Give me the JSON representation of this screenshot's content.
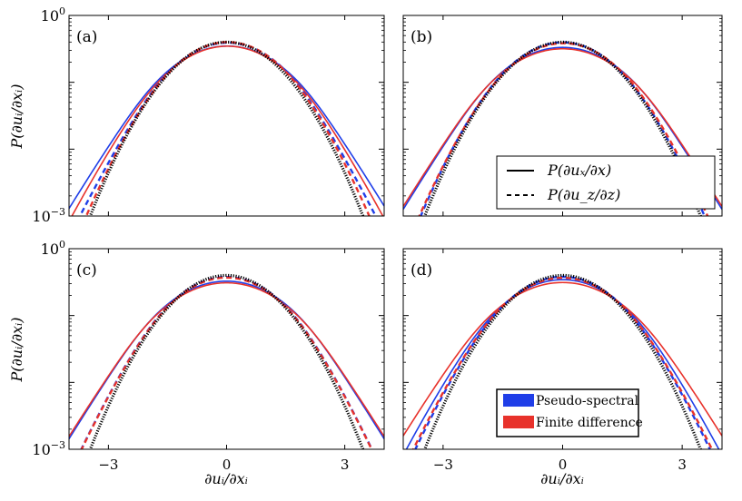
{
  "chart_data": {
    "type": "line",
    "title": "",
    "layout": "2x2 grid of semilog PDF panels",
    "xlabel": "∂uᵢ/∂xᵢ",
    "ylabel": "P(∂uᵢ/∂xᵢ)",
    "xlim": [
      -4,
      4
    ],
    "ylim": [
      0.001,
      1
    ],
    "yscale": "log",
    "xticks": [
      -3,
      0,
      3
    ],
    "xtick_labels": [
      "−3",
      "0",
      "3"
    ],
    "ytick_labels": [
      {
        "base": "10",
        "exp": "0",
        "value": 1
      },
      {
        "base": "10",
        "exp": "−3",
        "value": 0.001
      }
    ],
    "colors": {
      "pseudo_spectral": "#1f3ee8",
      "finite_difference": "#e8322b",
      "gaussian": "#000000"
    },
    "line_style_legend": {
      "placement": "panel (b), lower-right",
      "entries": [
        {
          "style": "solid",
          "label": "P(∂uₓ/∂x)"
        },
        {
          "style": "dashed",
          "label": "P(∂u_z/∂z)"
        }
      ]
    },
    "method_legend": {
      "placement": "panel (d), lower-right",
      "entries": [
        {
          "color_key": "pseudo_spectral",
          "label": "Pseudo-spectral"
        },
        {
          "color_key": "finite_difference",
          "label": "Finite difference"
        }
      ]
    },
    "reference": {
      "name": "Gaussian",
      "style": "dotted",
      "mean": 0,
      "std": 1
    },
    "panels": [
      {
        "label": "(a)",
        "series": [
          {
            "name": "Pseudo-spectral P(∂uₓ/∂x)",
            "method": "pseudo_spectral",
            "style": "solid",
            "std": 1.18,
            "skew": 0.02,
            "tail_alpha": 1.0,
            "tail_beta": 0.6,
            "tail_c": 1.9,
            "peak_factor": 1.03
          },
          {
            "name": "Finite difference P(∂uₓ/∂x)",
            "method": "finite_difference",
            "style": "solid",
            "std": 1.15,
            "skew": 0.02,
            "tail_alpha": 0.85,
            "tail_beta": 0.55,
            "tail_c": 2.0,
            "peak_factor": 1.0
          },
          {
            "name": "Pseudo-spectral P(∂u_z/∂z)",
            "method": "pseudo_spectral",
            "style": "dashed",
            "std": 1.08,
            "skew": 0.03,
            "tail_alpha": 0.9,
            "tail_beta": 0.55,
            "tail_c": 2.0,
            "peak_factor": 1.06
          },
          {
            "name": "Finite difference P(∂u_z/∂z)",
            "method": "finite_difference",
            "style": "dashed",
            "std": 1.05,
            "skew": 0.03,
            "tail_alpha": 0.55,
            "tail_beta": 0.5,
            "tail_c": 2.2,
            "peak_factor": 1.05
          }
        ]
      },
      {
        "label": "(b)",
        "series": [
          {
            "name": "Pseudo-spectral P(∂uₓ/∂x)",
            "method": "pseudo_spectral",
            "style": "solid",
            "std": 1.2,
            "skew": 0.0,
            "tail_alpha": 1.1,
            "tail_beta": 0.6,
            "tail_c": 2.0,
            "peak_factor": 1.0
          },
          {
            "name": "Finite difference P(∂uₓ/∂x)",
            "method": "finite_difference",
            "style": "solid",
            "std": 1.22,
            "skew": 0.0,
            "tail_alpha": 1.1,
            "tail_beta": 0.6,
            "tail_c": 2.0,
            "peak_factor": 0.97
          },
          {
            "name": "Pseudo-spectral P(∂u_z/∂z)",
            "method": "pseudo_spectral",
            "style": "dashed",
            "std": 1.04,
            "skew": 0.0,
            "tail_alpha": 0.35,
            "tail_beta": 0.5,
            "tail_c": 2.3,
            "peak_factor": 1.03
          },
          {
            "name": "Finite difference P(∂u_z/∂z)",
            "method": "finite_difference",
            "style": "dashed",
            "std": 1.06,
            "skew": 0.02,
            "tail_alpha": 0.5,
            "tail_beta": 0.5,
            "tail_c": 2.2,
            "peak_factor": 1.02
          }
        ]
      },
      {
        "label": "(c)",
        "series": [
          {
            "name": "Pseudo-spectral P(∂uₓ/∂x)",
            "method": "pseudo_spectral",
            "style": "solid",
            "std": 1.22,
            "skew": 0.0,
            "tail_alpha": 1.1,
            "tail_beta": 0.6,
            "tail_c": 2.0,
            "peak_factor": 1.0
          },
          {
            "name": "Finite difference P(∂uₓ/∂x)",
            "method": "finite_difference",
            "style": "solid",
            "std": 1.24,
            "skew": 0.0,
            "tail_alpha": 1.1,
            "tail_beta": 0.6,
            "tail_c": 2.0,
            "peak_factor": 0.96
          },
          {
            "name": "Pseudo-spectral P(∂u_z/∂z)",
            "method": "pseudo_spectral",
            "style": "dashed",
            "std": 1.08,
            "skew": 0.0,
            "tail_alpha": 0.8,
            "tail_beta": 0.55,
            "tail_c": 2.1,
            "peak_factor": 1.02
          },
          {
            "name": "Finite difference P(∂u_z/∂z)",
            "method": "finite_difference",
            "style": "dashed",
            "std": 1.08,
            "skew": 0.0,
            "tail_alpha": 0.8,
            "tail_beta": 0.55,
            "tail_c": 2.1,
            "peak_factor": 1.0
          }
        ]
      },
      {
        "label": "(d)",
        "series": [
          {
            "name": "Pseudo-spectral P(∂uₓ/∂x)",
            "method": "pseudo_spectral",
            "style": "solid",
            "std": 1.16,
            "skew": 0.0,
            "tail_alpha": 0.9,
            "tail_beta": 0.55,
            "tail_c": 2.1,
            "peak_factor": 1.0
          },
          {
            "name": "Finite difference P(∂uₓ/∂x)",
            "method": "finite_difference",
            "style": "solid",
            "std": 1.24,
            "skew": 0.0,
            "tail_alpha": 1.0,
            "tail_beta": 0.6,
            "tail_c": 2.0,
            "peak_factor": 0.97
          },
          {
            "name": "Pseudo-spectral P(∂u_z/∂z)",
            "method": "pseudo_spectral",
            "style": "dashed",
            "std": 1.08,
            "skew": 0.0,
            "tail_alpha": 0.7,
            "tail_beta": 0.55,
            "tail_c": 2.1,
            "peak_factor": 1.03
          },
          {
            "name": "Finite difference P(∂u_z/∂z)",
            "method": "finite_difference",
            "style": "dashed",
            "std": 1.1,
            "skew": 0.0,
            "tail_alpha": 0.75,
            "tail_beta": 0.55,
            "tail_c": 2.1,
            "peak_factor": 1.01
          }
        ]
      }
    ]
  }
}
